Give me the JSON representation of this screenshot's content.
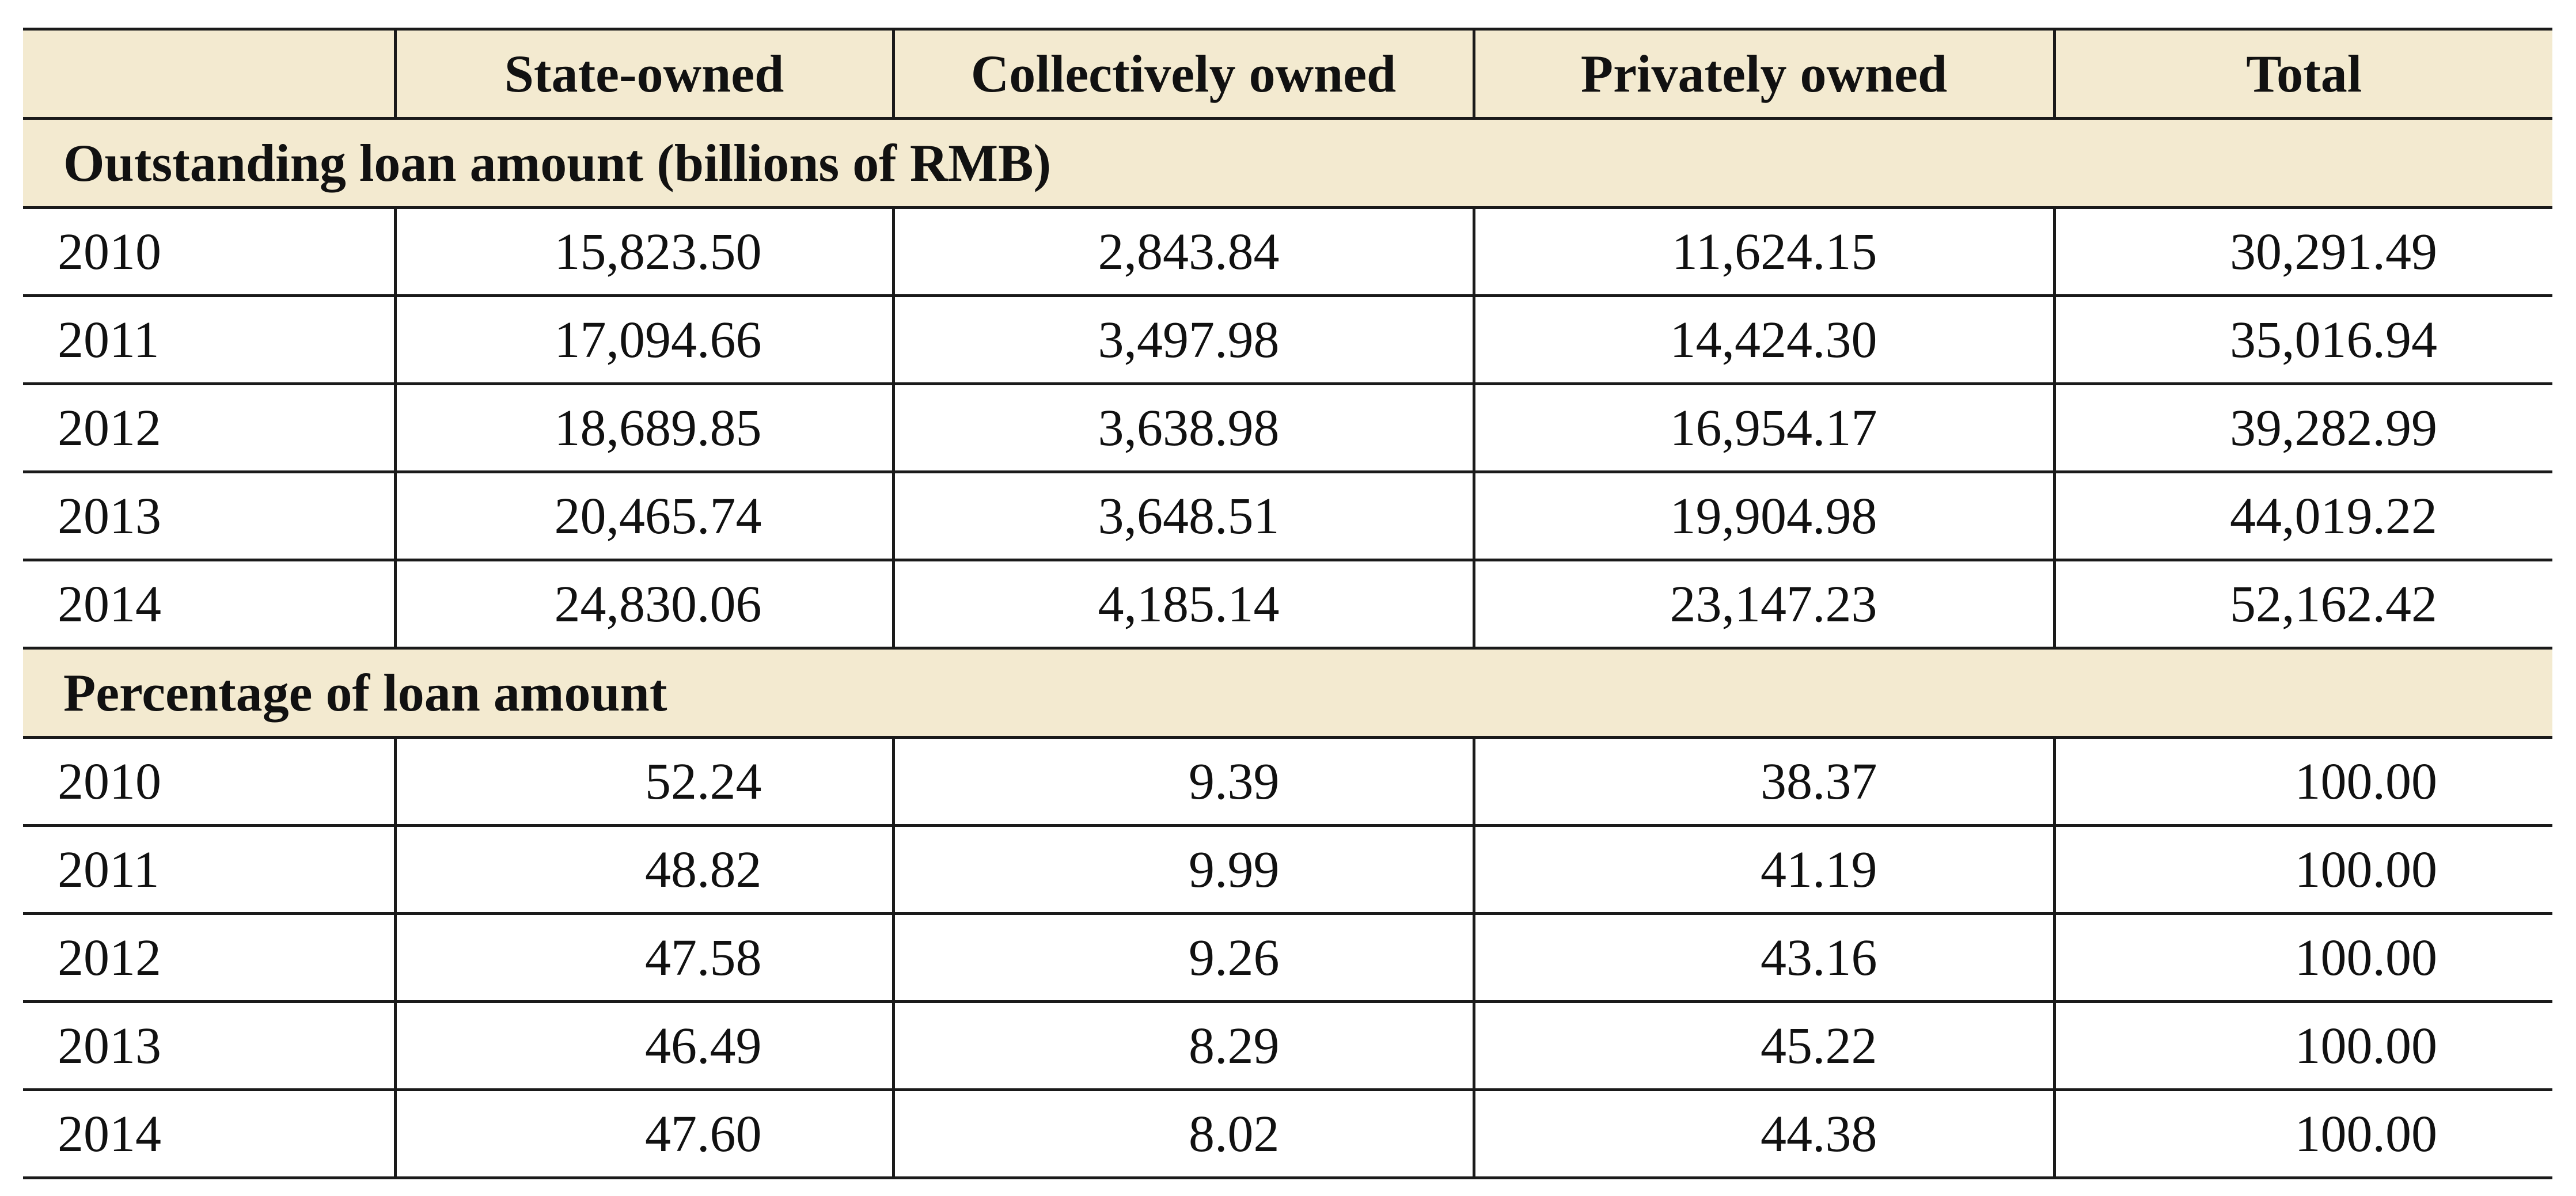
{
  "table": {
    "headers": [
      "",
      "State-owned",
      "Collectively owned",
      "Privately owned",
      "Total"
    ],
    "sections": [
      {
        "title": "Outstanding loan amount (billions of RMB)",
        "rows": [
          {
            "year": "2010",
            "state": "15,823.50",
            "collective": "2,843.84",
            "private": "11,624.15",
            "total": "30,291.49"
          },
          {
            "year": "2011",
            "state": "17,094.66",
            "collective": "3,497.98",
            "private": "14,424.30",
            "total": "35,016.94"
          },
          {
            "year": "2012",
            "state": "18,689.85",
            "collective": "3,638.98",
            "private": "16,954.17",
            "total": "39,282.99"
          },
          {
            "year": "2013",
            "state": "20,465.74",
            "collective": "3,648.51",
            "private": "19,904.98",
            "total": "44,019.22"
          },
          {
            "year": "2014",
            "state": "24,830.06",
            "collective": "4,185.14",
            "private": "23,147.23",
            "total": "52,162.42"
          }
        ]
      },
      {
        "title": "Percentage of loan amount",
        "rows": [
          {
            "year": "2010",
            "state": "52.24",
            "collective": "9.39",
            "private": "38.37",
            "total": "100.00"
          },
          {
            "year": "2011",
            "state": "48.82",
            "collective": "9.99",
            "private": "41.19",
            "total": "100.00"
          },
          {
            "year": "2012",
            "state": "47.58",
            "collective": "9.26",
            "private": "43.16",
            "total": "100.00"
          },
          {
            "year": "2013",
            "state": "46.49",
            "collective": "8.29",
            "private": "45.22",
            "total": "100.00"
          },
          {
            "year": "2014",
            "state": "47.60",
            "collective": "8.02",
            "private": "44.38",
            "total": "100.00"
          }
        ]
      }
    ]
  },
  "colors": {
    "header_bg": "#f3ead0",
    "border": "#1a1a1a",
    "text": "#111111"
  }
}
